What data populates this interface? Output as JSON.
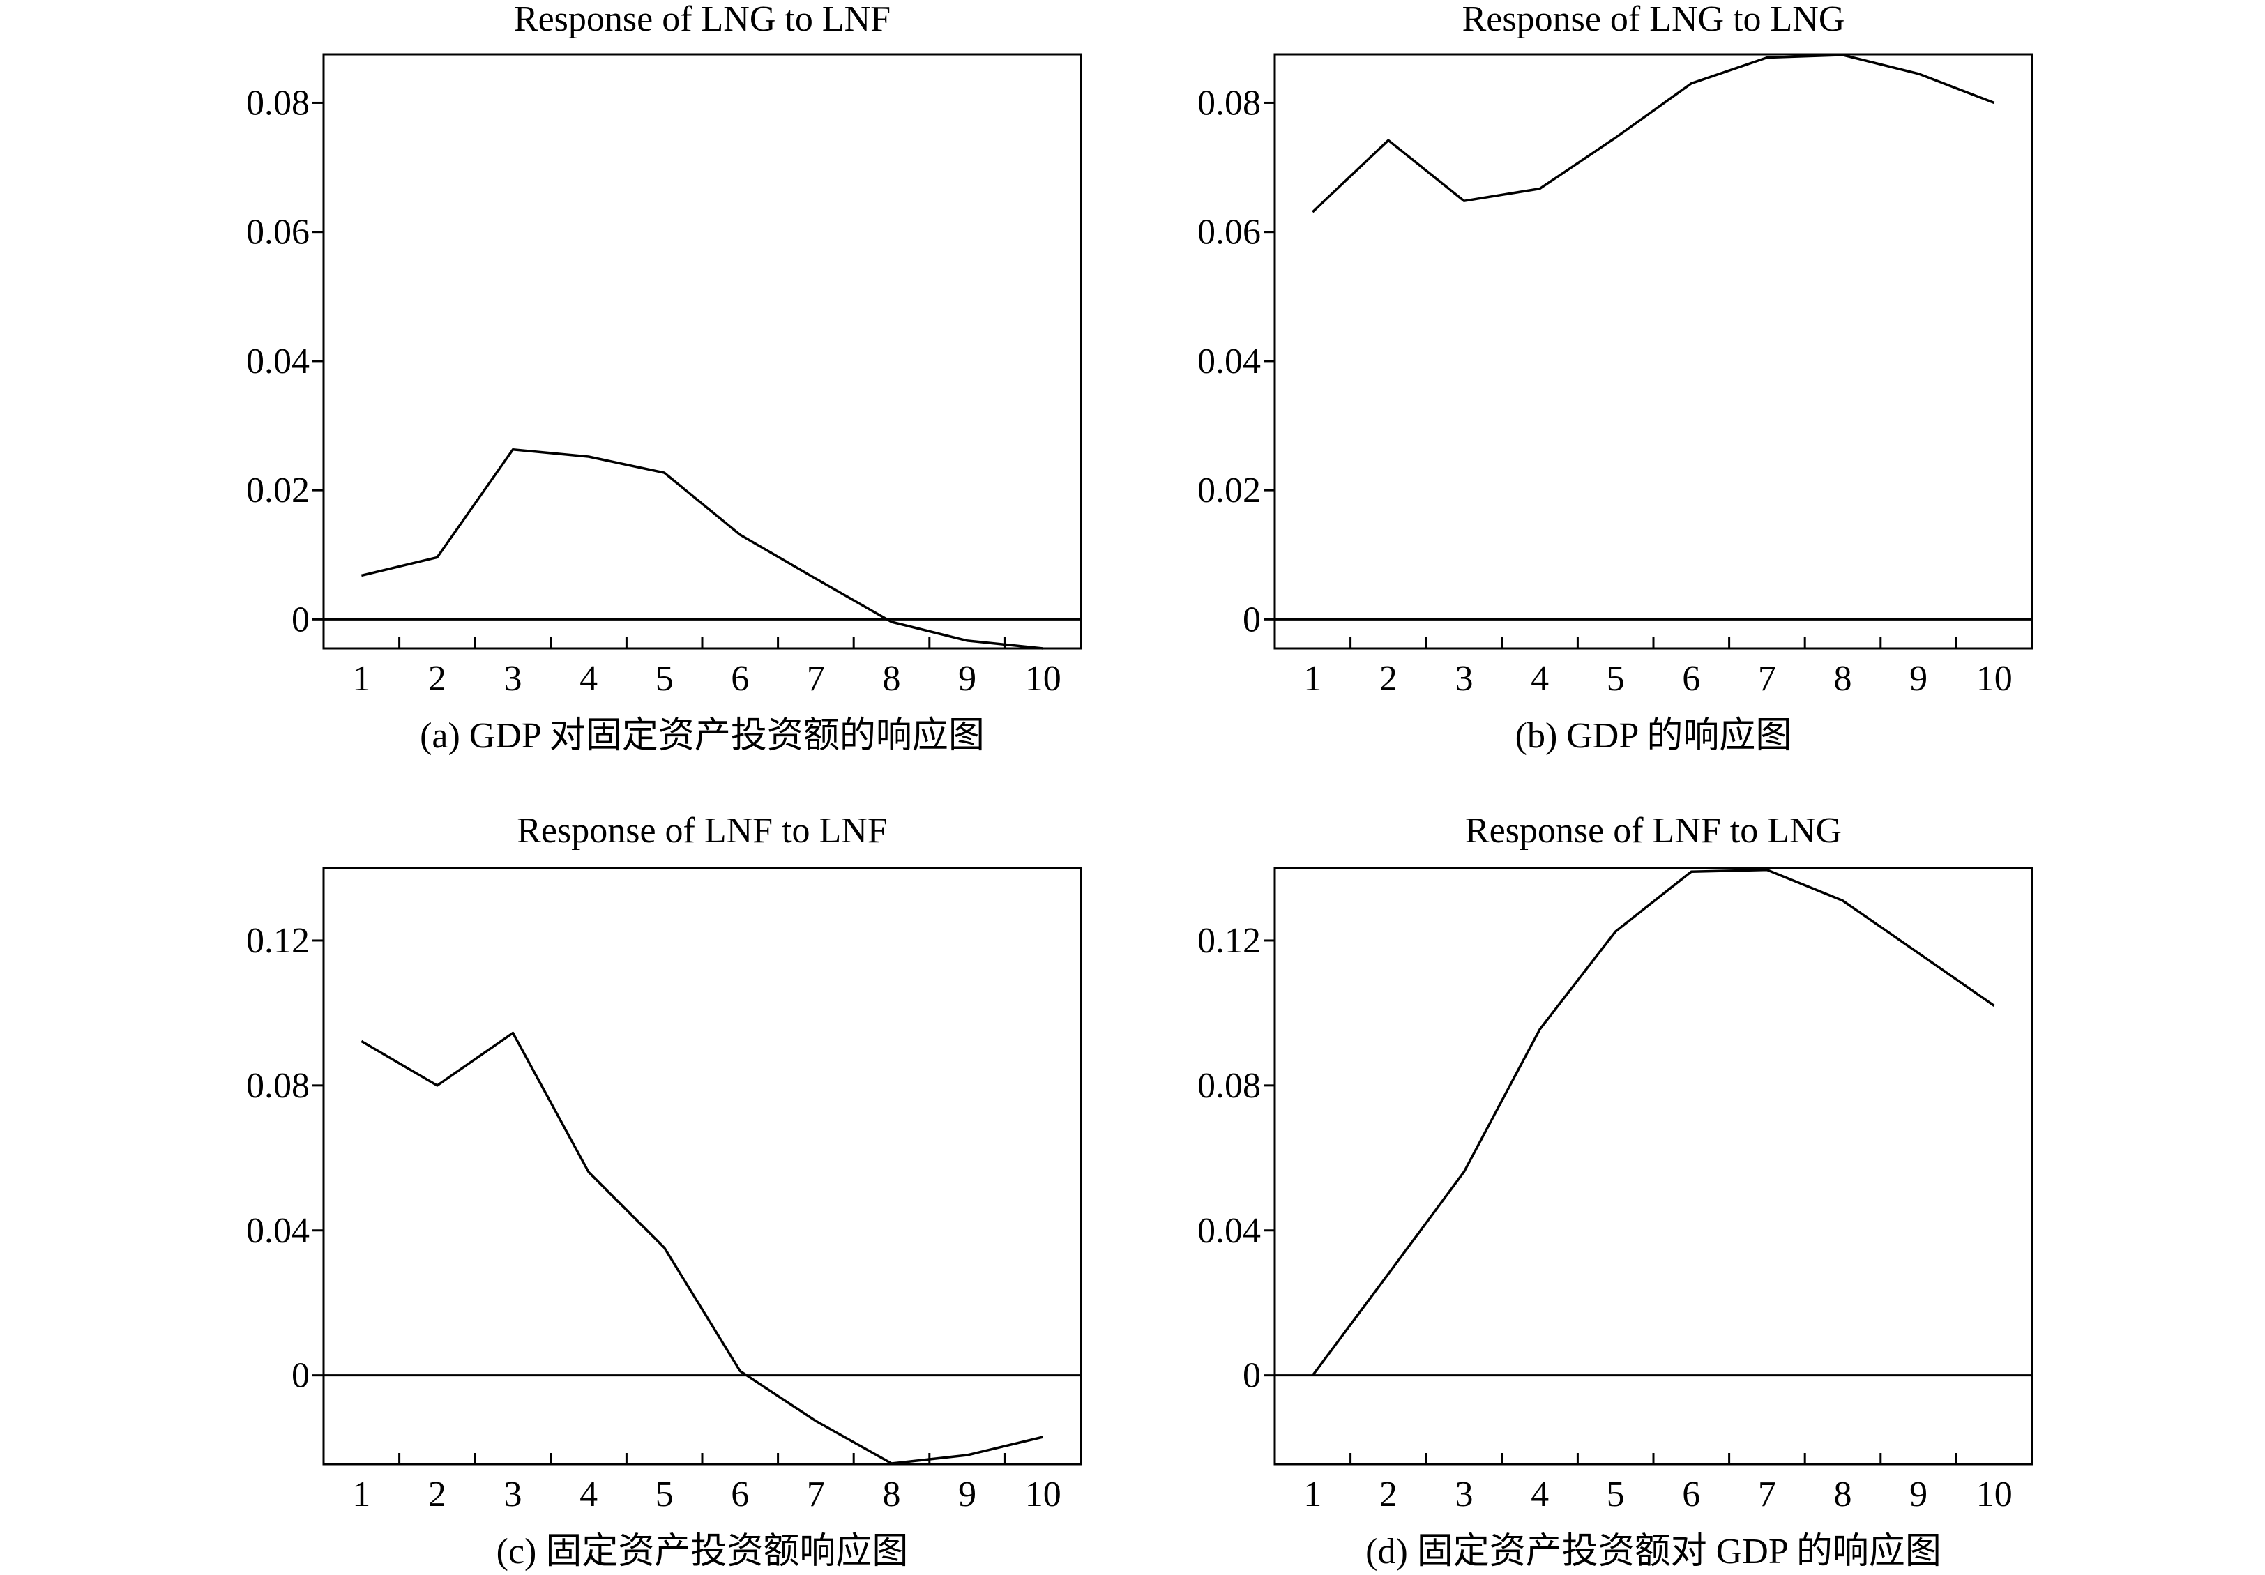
{
  "chart_data": [
    {
      "type": "line",
      "title": "Response of LNG to LNF",
      "caption": "(a) GDP 对固定资产投资额的响应图",
      "x": [
        1,
        2,
        3,
        4,
        5,
        6,
        7,
        8,
        9,
        10
      ],
      "xticks": [
        "1",
        "2",
        "3",
        "4",
        "5",
        "6",
        "7",
        "8",
        "9",
        "10"
      ],
      "yticks": [
        "0",
        "0.02",
        "0.04",
        "0.06",
        "0.08"
      ],
      "ytick_values": [
        0,
        0.02,
        0.04,
        0.06,
        0.08
      ],
      "xlim": [
        0.5,
        10.5
      ],
      "ylim": [
        -0.0045,
        0.0875
      ],
      "zero_line": true,
      "series": [
        {
          "values": [
            0.0068,
            0.0096,
            0.0263,
            0.0252,
            0.0227,
            0.0131,
            0.0063,
            -0.0004,
            -0.0033,
            -0.0045
          ]
        }
      ]
    },
    {
      "type": "line",
      "title": "Response of LNG to LNG",
      "caption": "(b) GDP 的响应图",
      "x": [
        1,
        2,
        3,
        4,
        5,
        6,
        7,
        8,
        9,
        10
      ],
      "xticks": [
        "1",
        "2",
        "3",
        "4",
        "5",
        "6",
        "7",
        "8",
        "9",
        "10"
      ],
      "yticks": [
        "0",
        "0.02",
        "0.04",
        "0.06",
        "0.08"
      ],
      "ytick_values": [
        0,
        0.02,
        0.04,
        0.06,
        0.08
      ],
      "xlim": [
        0.5,
        10.5
      ],
      "ylim": [
        -0.0045,
        0.0875
      ],
      "zero_line": true,
      "series": [
        {
          "values": [
            0.0631,
            0.0742,
            0.0648,
            0.0667,
            0.0746,
            0.083,
            0.087,
            0.0874,
            0.0845,
            0.08
          ]
        }
      ]
    },
    {
      "type": "line",
      "title": "Response of LNF to LNF",
      "caption": "(c) 固定资产投资额响应图",
      "x": [
        1,
        2,
        3,
        4,
        5,
        6,
        7,
        8,
        9,
        10
      ],
      "xticks": [
        "1",
        "2",
        "3",
        "4",
        "5",
        "6",
        "7",
        "8",
        "9",
        "10"
      ],
      "yticks": [
        "0",
        "0.04",
        "0.08",
        "0.12"
      ],
      "ytick_values": [
        0,
        0.04,
        0.08,
        0.12
      ],
      "xlim": [
        0.5,
        10.5
      ],
      "ylim": [
        -0.0245,
        0.14
      ],
      "zero_line": true,
      "series": [
        {
          "values": [
            0.0922,
            0.08,
            0.0945,
            0.0561,
            0.0352,
            0.0012,
            -0.0126,
            -0.0243,
            -0.022,
            -0.017
          ]
        }
      ]
    },
    {
      "type": "line",
      "title": "Response of LNF to LNG",
      "caption": "(d) 固定资产投资额对 GDP 的响应图",
      "x": [
        1,
        2,
        3,
        4,
        5,
        6,
        7,
        8,
        9,
        10
      ],
      "xticks": [
        "1",
        "2",
        "3",
        "4",
        "5",
        "6",
        "7",
        "8",
        "9",
        "10"
      ],
      "yticks": [
        "0",
        "0.04",
        "0.08",
        "0.12"
      ],
      "ytick_values": [
        0,
        0.04,
        0.08,
        0.12
      ],
      "xlim": [
        0.5,
        10.5
      ],
      "ylim": [
        -0.0245,
        0.14
      ],
      "zero_line": true,
      "series": [
        {
          "values": [
            0.0,
            0.028,
            0.0562,
            0.0955,
            0.1225,
            0.139,
            0.1395,
            0.131,
            0.1165,
            0.102
          ]
        }
      ]
    }
  ]
}
